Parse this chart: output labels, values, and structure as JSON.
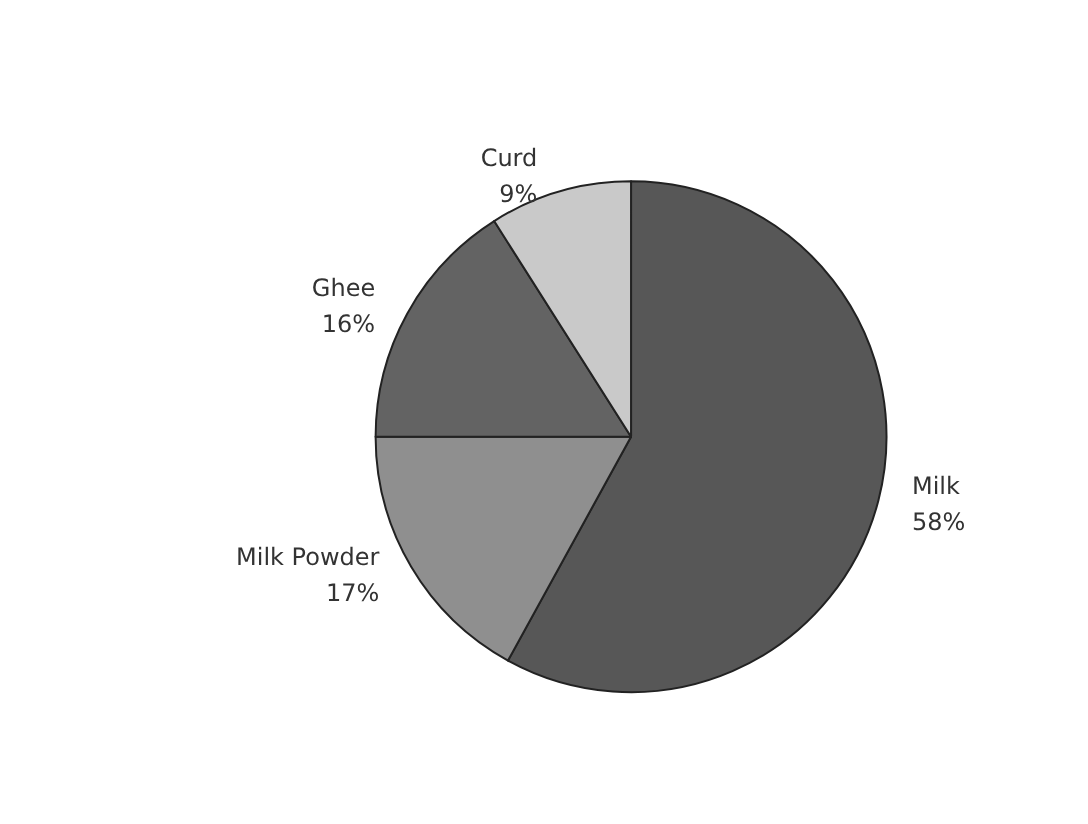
{
  "chart_data": {
    "type": "pie",
    "categories": [
      "Milk",
      "Milk Powder",
      "Ghee",
      "Curd"
    ],
    "values": [
      58,
      17,
      16,
      9
    ],
    "colors": [
      "#575757",
      "#8f8f8f",
      "#636363",
      "#c9c9c9"
    ],
    "value_labels": [
      "58%",
      "17%",
      "16%",
      "9%"
    ],
    "legend": false
  }
}
